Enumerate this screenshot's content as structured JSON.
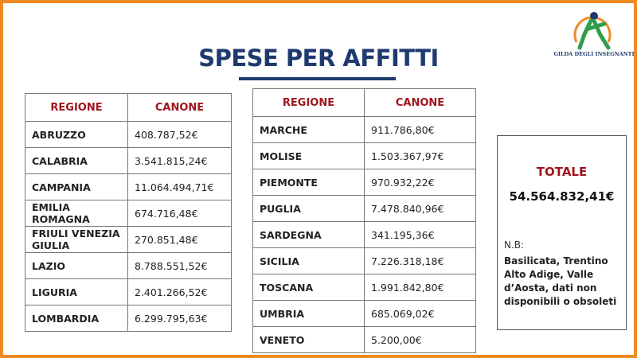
{
  "title": "SPESE PER AFFITTI",
  "logo_text": "GILDA DEGLI INSEGNANTI",
  "tables": [
    {
      "headers": [
        "REGIONE",
        "CANONE"
      ],
      "rows": [
        [
          "ABRUZZO",
          "408.787,52€"
        ],
        [
          "CALABRIA",
          "3.541.815,24€"
        ],
        [
          "CAMPANIA",
          "11.064.494,71€"
        ],
        [
          "EMILIA ROMAGNA",
          "674.716,48€"
        ],
        [
          "FRIULI VENEZIA GIULIA",
          "270.851,48€"
        ],
        [
          "LAZIO",
          "8.788.551,52€"
        ],
        [
          "LIGURIA",
          "2.401.266,52€"
        ],
        [
          "LOMBARDIA",
          "6.299.795,63€"
        ]
      ]
    },
    {
      "headers": [
        "REGIONE",
        "CANONE"
      ],
      "rows": [
        [
          "MARCHE",
          "911.786,80€"
        ],
        [
          "MOLISE",
          "1.503.367,97€"
        ],
        [
          "PIEMONTE",
          "970.932,22€"
        ],
        [
          "PUGLIA",
          "7.478.840,96€"
        ],
        [
          "SARDEGNA",
          "341.195,36€"
        ],
        [
          "SICILIA",
          "7.226.318,18€"
        ],
        [
          "TOSCANA",
          "1.991.842,80€"
        ],
        [
          "UMBRIA",
          "685.069,02€"
        ],
        [
          "VENETO",
          "5.200,00€"
        ]
      ]
    }
  ],
  "total": {
    "label": "TOTALE",
    "value": "54.564.832,41€",
    "note_label": "N.B:",
    "note": "Basilicata, Trentino Alto Adige, Valle d’Aosta, dati non disponibili o obsoleti"
  }
}
